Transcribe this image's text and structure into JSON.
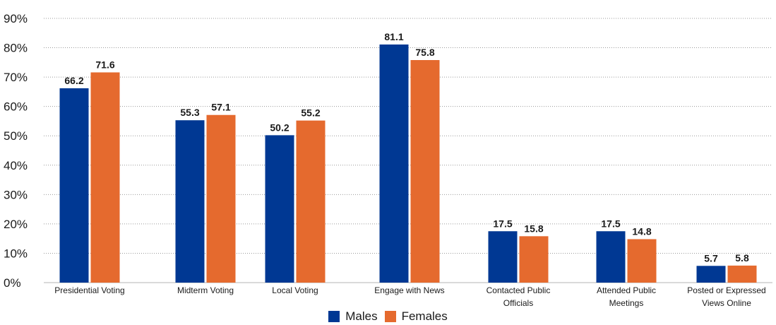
{
  "chart_data": {
    "type": "bar",
    "categories": [
      [
        "Presidential Voting"
      ],
      [
        "Midterm Voting"
      ],
      [
        "Local Voting"
      ],
      [
        "Engage with News"
      ],
      [
        "Contacted Public",
        "Officials"
      ],
      [
        "Attended Public",
        "Meetings"
      ],
      [
        "Posted or Expressed",
        "Views Online"
      ]
    ],
    "series": [
      {
        "name": "Males",
        "color": "#003893",
        "values": [
          66.2,
          55.3,
          50.2,
          81.1,
          17.5,
          17.5,
          5.7
        ]
      },
      {
        "name": "Females",
        "color": "#E56A2E",
        "values": [
          71.6,
          57.1,
          55.2,
          75.8,
          15.8,
          14.8,
          5.8
        ]
      }
    ],
    "y_ticks": [
      "0%",
      "10%",
      "20%",
      "30%",
      "40%",
      "50%",
      "60%",
      "70%",
      "80%",
      "90%"
    ],
    "ylim": [
      0,
      90
    ],
    "grid": true,
    "legend_position": "bottom"
  }
}
